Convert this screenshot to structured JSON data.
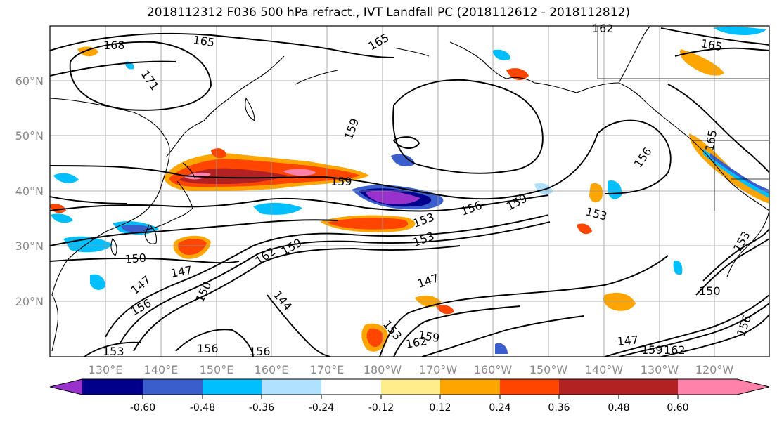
{
  "title": "2018112312 F036 500 hPa refract., IVT Landfall PC (2018112612 - 2018112812)",
  "longitude_labels": [
    "130°E",
    "140°E",
    "150°E",
    "160°E",
    "170°E",
    "180°W",
    "170°W",
    "160°W",
    "150°W",
    "140°W",
    "130°W",
    "120°W"
  ],
  "latitude_labels": [
    "60°N",
    "50°N",
    "40°N",
    "30°N",
    "20°N"
  ],
  "colorbar": {
    "tick_labels": [
      "-0.60",
      "-0.48",
      "-0.36",
      "-0.24",
      "-0.12",
      "0.12",
      "0.24",
      "0.36",
      "0.48",
      "0.60"
    ],
    "colors": [
      "#9932CC",
      "#00008B",
      "#3A5FCD",
      "#00BFFF",
      "#B0E2FF",
      "#FFFFFF",
      "#FFEC8B",
      "#FFA500",
      "#FF4500",
      "#B22222",
      "#FF82AB"
    ]
  },
  "contour_labels": [
    "168",
    "165",
    "171",
    "165",
    "162",
    "165",
    "159",
    "156",
    "159",
    "159",
    "153",
    "156",
    "153",
    "153",
    "150",
    "147",
    "147",
    "162",
    "159",
    "150",
    "156",
    "144",
    "153",
    "159",
    "162",
    "147",
    "150",
    "147",
    "159",
    "162",
    "153",
    "156",
    "156",
    "156",
    "165",
    "153"
  ],
  "colors": {
    "contour": "#000000",
    "coast": "#000000",
    "grid": "#9a9a9a",
    "tick": "#8a8a8a"
  }
}
